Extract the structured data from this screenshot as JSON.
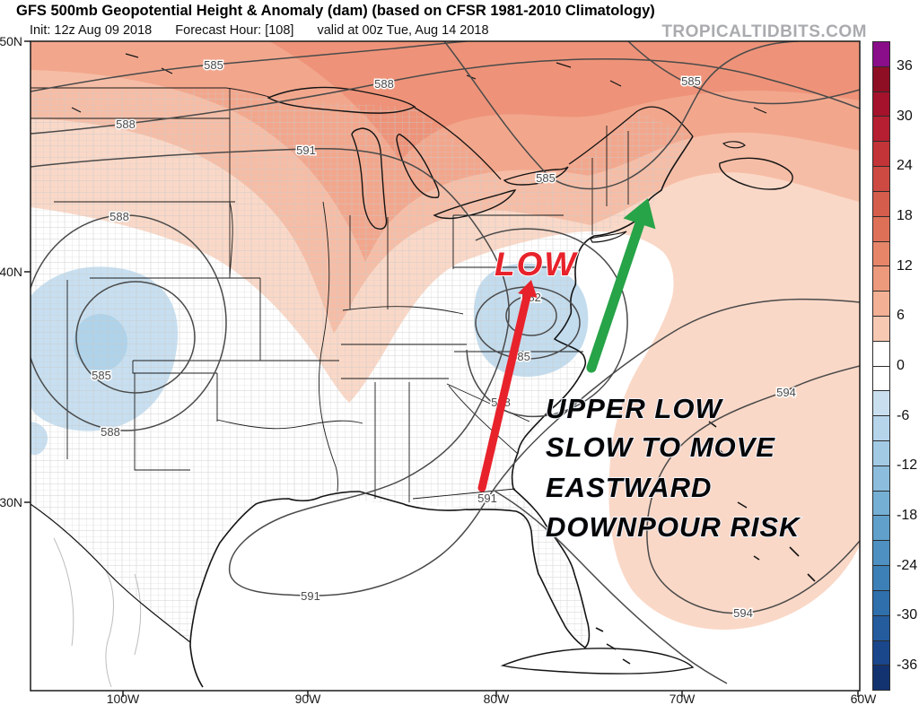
{
  "header": {
    "title": "GFS 500mb Geopotential Height & Anomaly (dam) (based on CFSR 1981-2010 Climatology)",
    "init": "Init: 12z Aug 09 2018",
    "forecast_hour": "Forecast Hour: [108]",
    "valid": "valid at 00z Tue, Aug 14 2018",
    "watermark": "TROPICALTIDBITS.COM"
  },
  "axes": {
    "lat": [
      "50N",
      "40N",
      "30N"
    ],
    "lon": [
      "100W",
      "90W",
      "80W",
      "70W",
      "60W"
    ]
  },
  "colorbar": {
    "unit": "dam",
    "ticks": [
      36,
      30,
      24,
      18,
      12,
      6,
      0,
      -6,
      -12,
      -18,
      -24,
      -30,
      -36
    ],
    "cells": [
      "#8A0D8A",
      "#8E0E24",
      "#A4122B",
      "#B51F31",
      "#C23437",
      "#CC4A42",
      "#D55D4C",
      "#DE7058",
      "#E68568",
      "#ED997C",
      "#F3B094",
      "#F8C9B2",
      "#FFFFFF",
      "#FFFFFF",
      "#C9DFF0",
      "#B6D5EB",
      "#A2CAE4",
      "#8CBDDC",
      "#75AFD4",
      "#60A0CB",
      "#4D90C1",
      "#3D80B7",
      "#2F6FAC",
      "#245C9E",
      "#1A478C",
      "#123370"
    ]
  },
  "map": {
    "contour_labels": [
      "585",
      "588",
      "591",
      "588",
      "588",
      "585",
      "585",
      "582",
      "585",
      "588",
      "585",
      "588",
      "591",
      "591",
      "594",
      "594"
    ]
  },
  "annotations": {
    "low": "LOW",
    "note_lines": [
      "UPPER LOW",
      "SLOW TO MOVE",
      "EASTWARD",
      "DOWNPOUR RISK"
    ]
  },
  "palette": {
    "band1": "#EE9379",
    "band2": "#F2A78D",
    "band3": "#F6BDA6",
    "band4": "#FAD8C7",
    "blue_outer": "#C7DFF0",
    "blue_inner": "#AFD3EA",
    "blue_va": "#C3DCEE",
    "arrow_red": "#E8222B",
    "arrow_green": "#27A348"
  },
  "chart_data": {
    "type": "contour-map",
    "variable": "500mb geopotential height anomaly",
    "unit": "dam",
    "contour_levels_dam": [
      582,
      585,
      588,
      591,
      594
    ],
    "anomaly_scale": {
      "min": -39,
      "max": 39,
      "step": 3
    },
    "features": [
      "closed 582/585/588 low over Virginia with -3 to -9 dam anomaly (blue)",
      "closed 585/588 low over Four Corners with -3 to -9 dam anomaly (blue)",
      "positive anomalies +3 to +18 dam across Great Lakes, Northeast and eastern Canada",
      "594 ridge contour and +3 to +6 dam anomaly over western Atlantic"
    ]
  }
}
